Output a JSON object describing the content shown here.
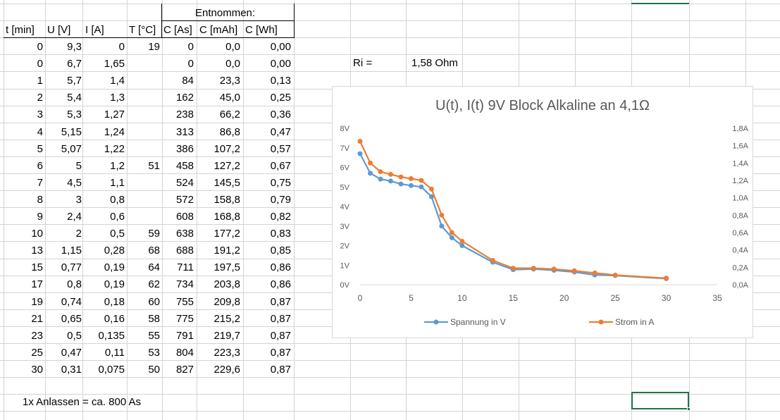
{
  "table": {
    "group_header": "Entnommen:",
    "headers": [
      "t [min]",
      "U [V]",
      "I [A]",
      "T [°C]",
      "C [As]",
      "C [mAh]",
      "C [Wh]"
    ],
    "rows": [
      [
        "0",
        "9,3",
        "0",
        "19",
        "0",
        "0,0",
        "0,00"
      ],
      [
        "0",
        "6,7",
        "1,65",
        "",
        "0",
        "0,0",
        "0,00"
      ],
      [
        "1",
        "5,7",
        "1,4",
        "",
        "84",
        "23,3",
        "0,13"
      ],
      [
        "2",
        "5,4",
        "1,3",
        "",
        "162",
        "45,0",
        "0,25"
      ],
      [
        "3",
        "5,3",
        "1,27",
        "",
        "238",
        "66,2",
        "0,36"
      ],
      [
        "4",
        "5,15",
        "1,24",
        "",
        "313",
        "86,8",
        "0,47"
      ],
      [
        "5",
        "5,07",
        "1,22",
        "",
        "386",
        "107,2",
        "0,57"
      ],
      [
        "6",
        "5",
        "1,2",
        "51",
        "458",
        "127,2",
        "0,67"
      ],
      [
        "7",
        "4,5",
        "1,1",
        "",
        "524",
        "145,5",
        "0,75"
      ],
      [
        "8",
        "3",
        "0,8",
        "",
        "572",
        "158,8",
        "0,79"
      ],
      [
        "9",
        "2,4",
        "0,6",
        "",
        "608",
        "168,8",
        "0,82"
      ],
      [
        "10",
        "2",
        "0,5",
        "59",
        "638",
        "177,2",
        "0,83"
      ],
      [
        "13",
        "1,15",
        "0,28",
        "68",
        "688",
        "191,2",
        "0,85"
      ],
      [
        "15",
        "0,77",
        "0,19",
        "64",
        "711",
        "197,5",
        "0,86"
      ],
      [
        "17",
        "0,8",
        "0,19",
        "62",
        "734",
        "203,8",
        "0,86"
      ],
      [
        "19",
        "0,74",
        "0,18",
        "60",
        "755",
        "209,8",
        "0,87"
      ],
      [
        "21",
        "0,65",
        "0,16",
        "58",
        "775",
        "215,2",
        "0,87"
      ],
      [
        "23",
        "0,5",
        "0,135",
        "55",
        "791",
        "219,7",
        "0,87"
      ],
      [
        "25",
        "0,47",
        "0,11",
        "53",
        "804",
        "223,3",
        "0,87"
      ],
      [
        "30",
        "0,31",
        "0,075",
        "50",
        "827",
        "229,6",
        "0,87"
      ]
    ]
  },
  "ri": {
    "label": "Ri =",
    "value": "1,58 Ohm"
  },
  "note": "1x Anlassen = ca. 800 As",
  "chart_data": {
    "type": "line",
    "title": "U(t), I(t) 9V Block Alkaline an 4,1Ω",
    "x_ticks": [
      "0",
      "5",
      "10",
      "15",
      "20",
      "25",
      "30",
      "35"
    ],
    "xlim": [
      0,
      35
    ],
    "y_left_ticks": [
      "0V",
      "1V",
      "2V",
      "3V",
      "4V",
      "5V",
      "6V",
      "7V",
      "8V"
    ],
    "y_left_lim": [
      0,
      8
    ],
    "y_right_ticks": [
      "0,0A",
      "0,2A",
      "0,4A",
      "0,6A",
      "0,8A",
      "1,0A",
      "1,2A",
      "1,4A",
      "1,6A",
      "1,8A"
    ],
    "y_right_lim": [
      0,
      1.8
    ],
    "legend_position": "bottom",
    "series": [
      {
        "name": "Spannung in V",
        "axis": "left",
        "color": "#5b9bd5",
        "x": [
          0,
          1,
          2,
          3,
          4,
          5,
          6,
          7,
          8,
          9,
          10,
          13,
          15,
          17,
          19,
          21,
          23,
          25,
          30
        ],
        "y": [
          6.7,
          5.7,
          5.4,
          5.3,
          5.15,
          5.07,
          5,
          4.5,
          3,
          2.4,
          2,
          1.15,
          0.77,
          0.8,
          0.74,
          0.65,
          0.5,
          0.47,
          0.31
        ]
      },
      {
        "name": "Strom in A",
        "axis": "right",
        "color": "#ed7d31",
        "x": [
          0,
          1,
          2,
          3,
          4,
          5,
          6,
          7,
          8,
          9,
          10,
          13,
          15,
          17,
          19,
          21,
          23,
          25,
          30
        ],
        "y": [
          1.65,
          1.4,
          1.3,
          1.27,
          1.24,
          1.22,
          1.2,
          1.1,
          0.8,
          0.6,
          0.5,
          0.28,
          0.19,
          0.19,
          0.18,
          0.16,
          0.135,
          0.11,
          0.075
        ]
      }
    ]
  }
}
